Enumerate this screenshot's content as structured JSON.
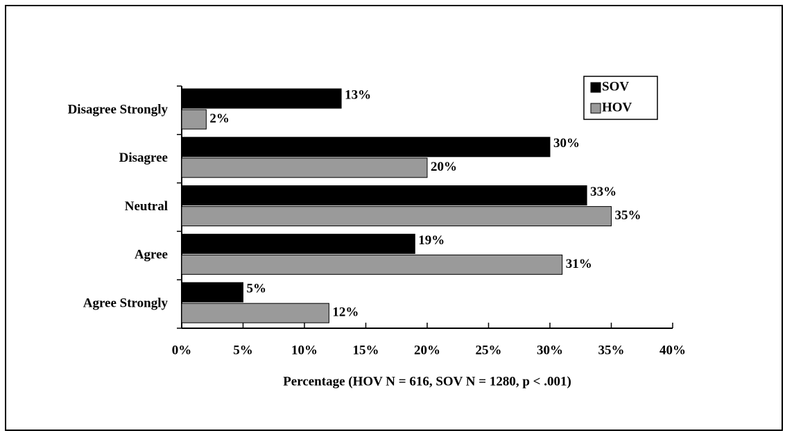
{
  "chart_data": {
    "type": "hbar",
    "categories": [
      "Disagree Strongly",
      "Disagree",
      "Neutral",
      "Agree",
      "Agree Strongly"
    ],
    "series": [
      {
        "name": "SOV",
        "color": "#000000",
        "values": [
          13,
          30,
          33,
          19,
          5
        ],
        "value_labels": [
          "13%",
          "30%",
          "33%",
          "19%",
          "5%"
        ]
      },
      {
        "name": "HOV",
        "color": "#9a9a9a",
        "values": [
          2,
          20,
          35,
          31,
          12
        ],
        "value_labels": [
          "2%",
          "20%",
          "35%",
          "31%",
          "12%"
        ]
      }
    ],
    "xlim": [
      0,
      40
    ],
    "xticks": [
      {
        "value": 0,
        "label": "0%"
      },
      {
        "value": 5,
        "label": "5%"
      },
      {
        "value": 10,
        "label": "10%"
      },
      {
        "value": 15,
        "label": "15%"
      },
      {
        "value": 20,
        "label": "20%"
      },
      {
        "value": 25,
        "label": "25%"
      },
      {
        "value": 30,
        "label": "30%"
      },
      {
        "value": 35,
        "label": "35%"
      },
      {
        "value": 40,
        "label": "40%"
      }
    ],
    "xlabel": "Percentage (HOV N = 616, SOV N = 1280, p < .001)",
    "legend": "top-right"
  }
}
